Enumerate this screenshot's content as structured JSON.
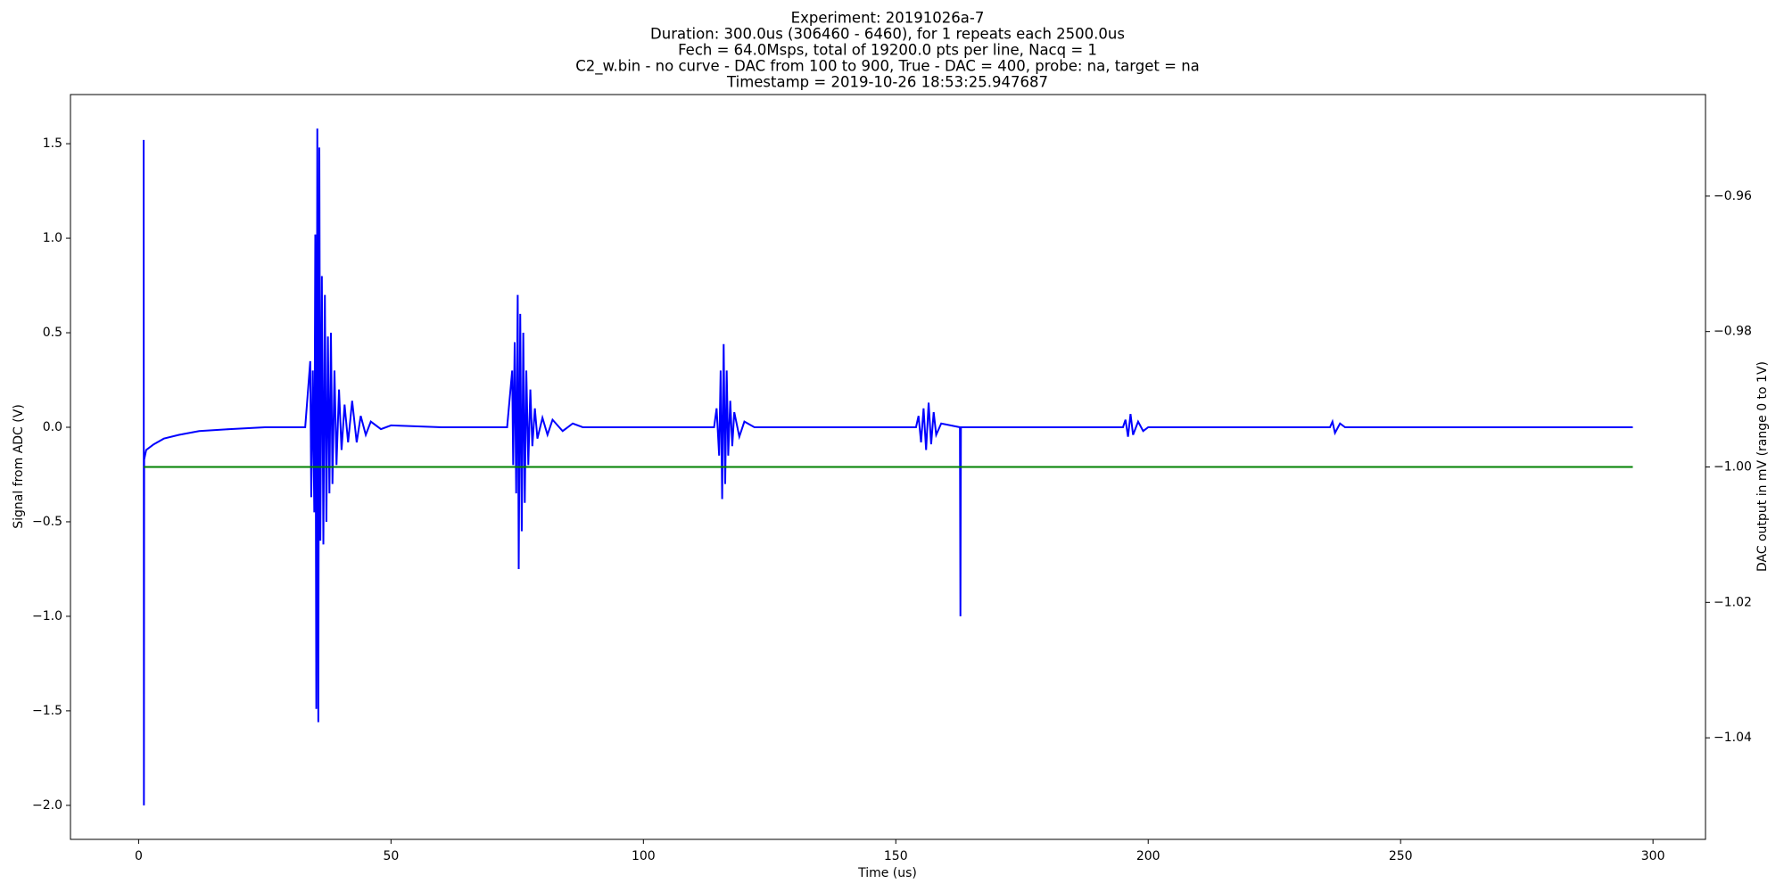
{
  "chart_data": {
    "type": "line",
    "title": [
      "Experiment: 20191026a-7",
      "Duration: 300.0us (306460 - 6460), for 1 repeats each 2500.0us",
      "Fech = 64.0Msps, total of 19200.0 pts per line, Nacq = 1",
      "C2_w.bin - no curve - DAC from 100 to 900, True - DAC = 400, probe: na, target = na",
      "Timestamp = 2019-10-26 18:53:25.947687"
    ],
    "xlabel": "Time (us)",
    "ylabel": "Signal from ADC (V)",
    "y2label": "DAC output in mV (range 0 to 1V)",
    "xlim": [
      -13.5,
      310.4
    ],
    "xticks": [
      0,
      50,
      100,
      150,
      200,
      250,
      300
    ],
    "ylim": [
      -2.18,
      1.76
    ],
    "yticks": [
      {
        "value": -2,
        "label": "−2.0"
      },
      {
        "value": -1.5,
        "label": "−1.5"
      },
      {
        "value": -1,
        "label": "−1.0"
      },
      {
        "value": -0.5,
        "label": "−0.5"
      },
      {
        "value": 0,
        "label": "0.0"
      },
      {
        "value": 0.5,
        "label": "0.5"
      },
      {
        "value": 1,
        "label": "1.0"
      },
      {
        "value": 1.5,
        "label": "1.5"
      }
    ],
    "y2lim": [
      -1.055,
      -0.945
    ],
    "y2ticks": [
      {
        "value": -1.04,
        "label": "−1.04"
      },
      {
        "value": -1.02,
        "label": "−1.02"
      },
      {
        "value": -1,
        "label": "−1.00"
      },
      {
        "value": -0.98,
        "label": "−0.98"
      },
      {
        "value": -0.96,
        "label": "−0.96"
      }
    ],
    "grid": false,
    "series": [
      {
        "color": "#0000ff",
        "x": [
          1.0,
          1.05,
          1.1,
          1.5,
          3,
          5,
          8,
          12,
          18,
          25,
          33,
          34,
          34.2,
          34.5,
          34.8,
          35,
          35.2,
          35.4,
          35.6,
          35.8,
          36,
          36.3,
          36.6,
          36.9,
          37.2,
          37.5,
          37.8,
          38.1,
          38.4,
          38.8,
          39.2,
          39.7,
          40.2,
          40.8,
          41.5,
          42.3,
          43.2,
          44,
          45,
          46,
          48,
          50,
          60,
          73,
          74,
          74.2,
          74.5,
          74.8,
          75.1,
          75.3,
          75.6,
          75.9,
          76.2,
          76.5,
          76.8,
          77.2,
          77.6,
          78,
          78.5,
          79,
          80,
          81,
          82,
          84,
          86,
          88,
          114,
          114.5,
          115,
          115.3,
          115.6,
          115.9,
          116.2,
          116.5,
          116.8,
          117.2,
          117.6,
          118,
          119,
          120,
          122,
          154,
          154.5,
          155,
          155.5,
          156,
          156.5,
          157,
          157.5,
          158,
          159,
          162.7,
          162.8,
          162.9,
          195,
          195.5,
          196,
          196.5,
          197,
          198,
          199,
          200,
          236,
          236.5,
          237,
          238,
          239,
          296
        ],
        "values": [
          1.52,
          -2.0,
          -0.17,
          -0.12,
          -0.09,
          -0.06,
          -0.04,
          -0.02,
          -0.01,
          0.0,
          0.0,
          0.35,
          -0.37,
          0.3,
          -0.45,
          1.02,
          -1.49,
          1.58,
          -1.56,
          1.48,
          -0.6,
          0.8,
          -0.62,
          0.7,
          -0.5,
          0.48,
          -0.35,
          0.5,
          -0.3,
          0.3,
          -0.2,
          0.2,
          -0.12,
          0.12,
          -0.08,
          0.14,
          -0.08,
          0.06,
          -0.04,
          0.03,
          -0.01,
          0.01,
          0.0,
          0.0,
          0.3,
          -0.2,
          0.45,
          -0.35,
          0.7,
          -0.75,
          0.6,
          -0.55,
          0.5,
          -0.4,
          0.3,
          -0.2,
          0.2,
          -0.1,
          0.1,
          -0.06,
          0.05,
          -0.04,
          0.04,
          -0.02,
          0.02,
          0.0,
          0.0,
          0.1,
          -0.15,
          0.3,
          -0.38,
          0.44,
          -0.3,
          0.3,
          -0.15,
          0.14,
          -0.1,
          0.08,
          -0.05,
          0.03,
          0.0,
          0.0,
          0.06,
          -0.08,
          0.1,
          -0.12,
          0.13,
          -0.09,
          0.08,
          -0.04,
          0.02,
          0.0,
          -1.0,
          0.0,
          0.0,
          0.04,
          -0.05,
          0.07,
          -0.04,
          0.03,
          -0.02,
          0.0,
          0.0,
          0.03,
          -0.03,
          0.02,
          0.0,
          0.0
        ]
      },
      {
        "color": "#008000",
        "axis": "y2",
        "x": [
          1,
          296
        ],
        "values": [
          -1.0,
          -1.0
        ]
      }
    ]
  }
}
